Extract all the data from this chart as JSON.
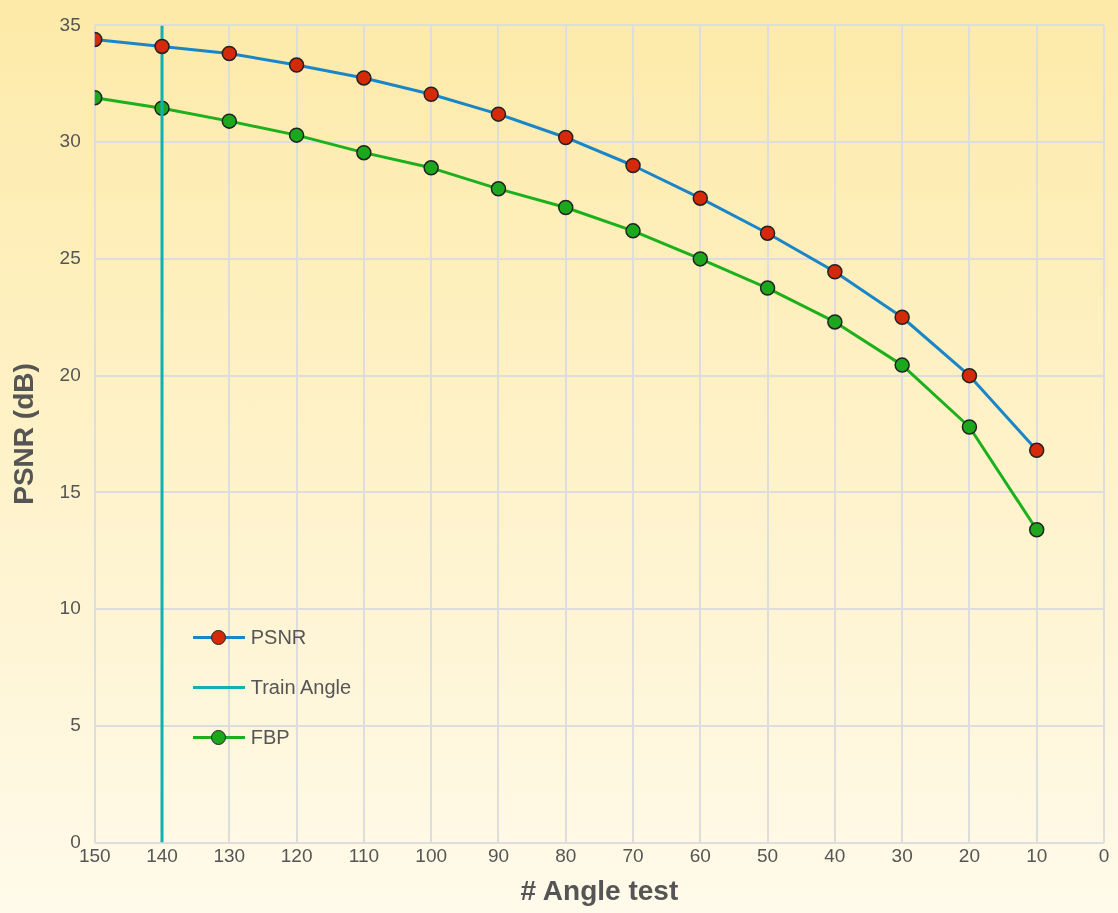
{
  "chart_data": {
    "type": "line",
    "xlabel": "# Angle test",
    "ylabel": "PSNR (dB)",
    "x": [
      150,
      140,
      130,
      120,
      110,
      100,
      90,
      80,
      70,
      60,
      50,
      40,
      30,
      20,
      10
    ],
    "series": [
      {
        "name": "PSNR",
        "color": "#1a86c8",
        "colors": [
          "#d42a0a",
          "#d42a0a",
          "#d42a0a",
          "#d42a0a",
          "#d42a0a",
          "#d42a0a",
          "#d42a0a",
          "#d42a0a",
          "#d42a0a",
          "#d42a0a",
          "#d42a0a",
          "#d42a0a",
          "#d42a0a",
          "#d42a0a",
          "#d42a0a"
        ],
        "values": [
          34.4,
          34.1,
          33.8,
          33.3,
          32.75,
          32.05,
          31.2,
          30.2,
          29.0,
          27.6,
          26.1,
          24.45,
          22.5,
          20.0,
          16.8
        ]
      },
      {
        "name": "Train Angle",
        "color": "#14b0b0",
        "x": [
          140,
          140
        ],
        "values": [
          0,
          35
        ],
        "marker": "none"
      },
      {
        "name": "FBP",
        "color": "#1cb01c",
        "colors": [
          "#1ca81c",
          "#1ca81c",
          "#1ca81c",
          "#1ca81c",
          "#1ca81c",
          "#1ca81c",
          "#1ca81c",
          "#1ca81c",
          "#1ca81c",
          "#1ca81c",
          "#1ca81c",
          "#1ca81c",
          "#1ca81c",
          "#1ca81c",
          "#1ca81c"
        ],
        "values": [
          31.9,
          31.45,
          30.9,
          30.3,
          29.55,
          28.9,
          28.0,
          27.2,
          26.2,
          25.0,
          23.75,
          22.3,
          20.45,
          17.8,
          13.4
        ]
      }
    ],
    "xlim": [
      150,
      0
    ],
    "xticks": [
      150,
      140,
      130,
      120,
      110,
      100,
      90,
      80,
      70,
      60,
      50,
      40,
      30,
      20,
      10,
      0
    ],
    "ylim": [
      0,
      35
    ],
    "yticks": [
      0,
      5,
      10,
      15,
      20,
      25,
      30,
      35
    ],
    "grid": true,
    "legend": "bottom left",
    "marker": "circle",
    "line_style": "solid"
  }
}
